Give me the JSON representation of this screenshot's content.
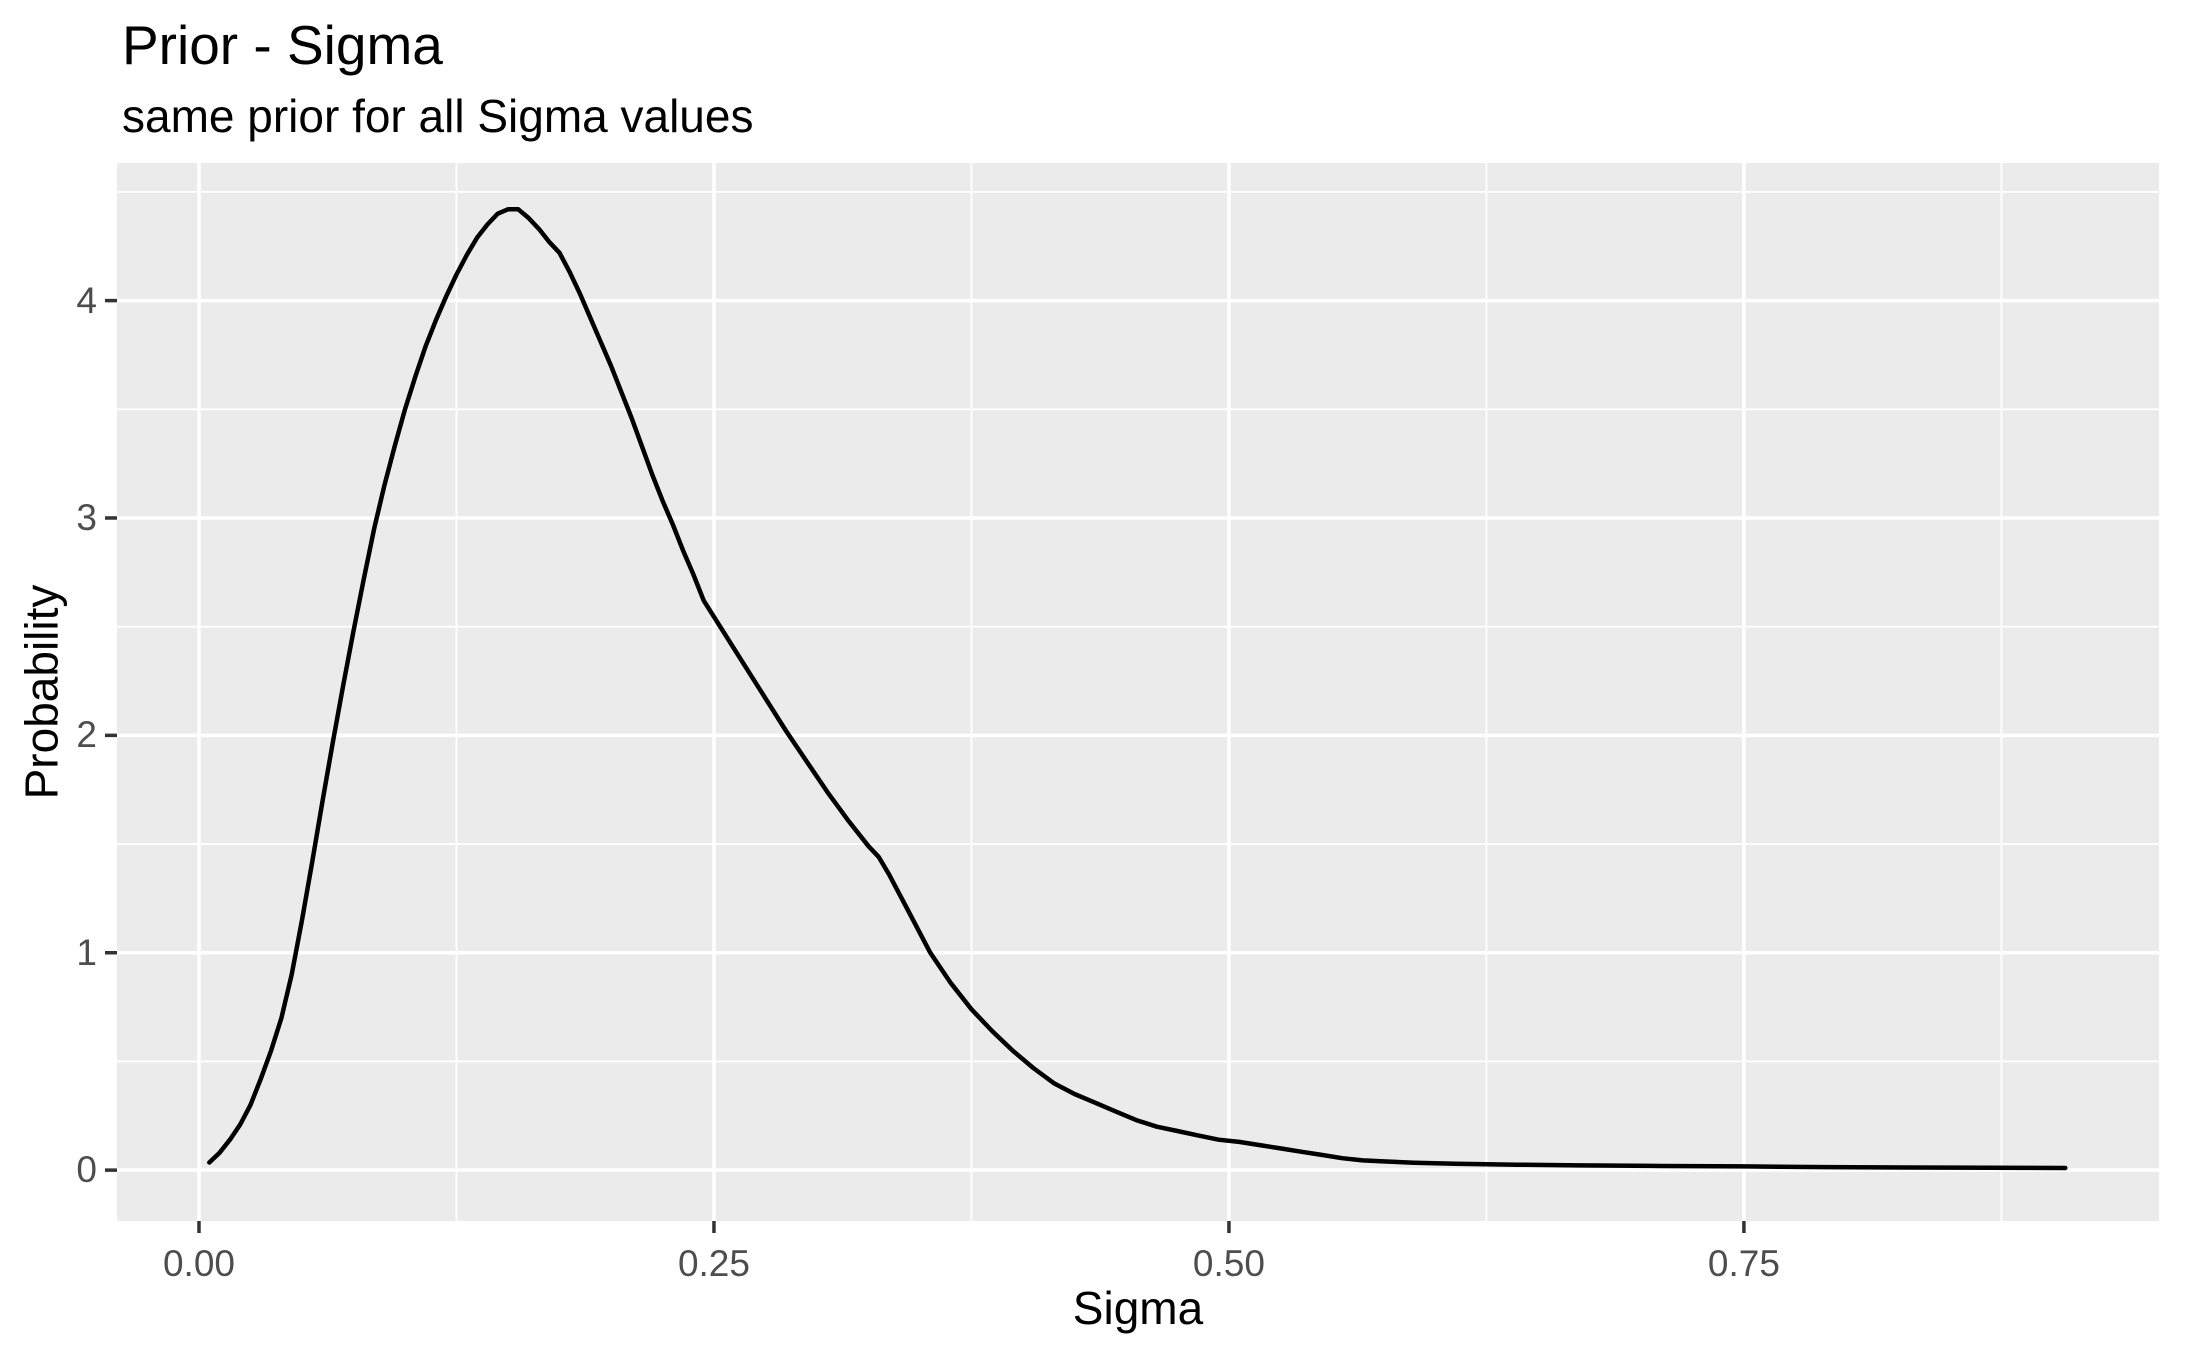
{
  "chart_data": {
    "type": "line",
    "title": "Prior - Sigma",
    "subtitle": "same prior for all Sigma values",
    "xlabel": "Sigma",
    "ylabel": "Probability",
    "xlim": [
      -0.0398,
      0.9515
    ],
    "ylim": [
      -0.234,
      4.633
    ],
    "x_major_ticks": [
      0,
      0.25,
      0.5,
      0.75
    ],
    "x_tick_labels": [
      "0.00",
      "0.25",
      "0.50",
      "0.75"
    ],
    "x_minor_ticks": [
      0.125,
      0.375,
      0.625,
      0.875
    ],
    "y_major_ticks": [
      0,
      1,
      2,
      3,
      4
    ],
    "y_tick_labels": [
      "0",
      "1",
      "2",
      "3",
      "4"
    ],
    "y_minor_ticks": [
      0.5,
      1.5,
      2.5,
      3.5,
      4.5
    ],
    "grid": "on",
    "legend": "none",
    "panel_background": "#EBEBEB",
    "gridline_color": "#FFFFFF",
    "line_color": "#000000",
    "line_width": 4.5,
    "tick_label_color": "#4D4D4D",
    "tick_mark_color": "#333333",
    "series": [
      {
        "name": "prior density",
        "points": [
          [
            0.005,
            0.035
          ],
          [
            0.01,
            0.08
          ],
          [
            0.015,
            0.14
          ],
          [
            0.02,
            0.21
          ],
          [
            0.025,
            0.3
          ],
          [
            0.03,
            0.42
          ],
          [
            0.035,
            0.55
          ],
          [
            0.04,
            0.7
          ],
          [
            0.045,
            0.9
          ],
          [
            0.05,
            1.15
          ],
          [
            0.055,
            1.42
          ],
          [
            0.06,
            1.7
          ],
          [
            0.065,
            1.97
          ],
          [
            0.07,
            2.23
          ],
          [
            0.075,
            2.48
          ],
          [
            0.08,
            2.72
          ],
          [
            0.085,
            2.95
          ],
          [
            0.09,
            3.15
          ],
          [
            0.095,
            3.33
          ],
          [
            0.1,
            3.5
          ],
          [
            0.105,
            3.65
          ],
          [
            0.11,
            3.79
          ],
          [
            0.115,
            3.91
          ],
          [
            0.12,
            4.02
          ],
          [
            0.125,
            4.12
          ],
          [
            0.13,
            4.21
          ],
          [
            0.135,
            4.29
          ],
          [
            0.14,
            4.35
          ],
          [
            0.145,
            4.4
          ],
          [
            0.15,
            4.42
          ],
          [
            0.155,
            4.42
          ],
          [
            0.16,
            4.38
          ],
          [
            0.165,
            4.33
          ],
          [
            0.17,
            4.27
          ],
          [
            0.175,
            4.22
          ],
          [
            0.18,
            4.13
          ],
          [
            0.185,
            4.03
          ],
          [
            0.19,
            3.92
          ],
          [
            0.195,
            3.81
          ],
          [
            0.2,
            3.7
          ],
          [
            0.205,
            3.58
          ],
          [
            0.21,
            3.46
          ],
          [
            0.215,
            3.33
          ],
          [
            0.22,
            3.2
          ],
          [
            0.225,
            3.08
          ],
          [
            0.23,
            2.97
          ],
          [
            0.235,
            2.85
          ],
          [
            0.24,
            2.74
          ],
          [
            0.245,
            2.62
          ],
          [
            0.255,
            2.47
          ],
          [
            0.265,
            2.32
          ],
          [
            0.275,
            2.17
          ],
          [
            0.285,
            2.02
          ],
          [
            0.295,
            1.88
          ],
          [
            0.305,
            1.74
          ],
          [
            0.315,
            1.61
          ],
          [
            0.325,
            1.49
          ],
          [
            0.33,
            1.44
          ],
          [
            0.335,
            1.36
          ],
          [
            0.345,
            1.18
          ],
          [
            0.355,
            1.0
          ],
          [
            0.365,
            0.86
          ],
          [
            0.375,
            0.74
          ],
          [
            0.385,
            0.64
          ],
          [
            0.395,
            0.55
          ],
          [
            0.405,
            0.47
          ],
          [
            0.415,
            0.4
          ],
          [
            0.425,
            0.35
          ],
          [
            0.435,
            0.31
          ],
          [
            0.445,
            0.27
          ],
          [
            0.455,
            0.23
          ],
          [
            0.465,
            0.2
          ],
          [
            0.475,
            0.18
          ],
          [
            0.485,
            0.16
          ],
          [
            0.495,
            0.14
          ],
          [
            0.505,
            0.13
          ],
          [
            0.515,
            0.115
          ],
          [
            0.525,
            0.1
          ],
          [
            0.535,
            0.085
          ],
          [
            0.545,
            0.07
          ],
          [
            0.555,
            0.055
          ],
          [
            0.565,
            0.045
          ],
          [
            0.575,
            0.04
          ],
          [
            0.59,
            0.034
          ],
          [
            0.61,
            0.029
          ],
          [
            0.64,
            0.025
          ],
          [
            0.67,
            0.022
          ],
          [
            0.71,
            0.019
          ],
          [
            0.75,
            0.017
          ],
          [
            0.79,
            0.014
          ],
          [
            0.83,
            0.012
          ],
          [
            0.87,
            0.011
          ],
          [
            0.906,
            0.01
          ]
        ]
      }
    ]
  }
}
